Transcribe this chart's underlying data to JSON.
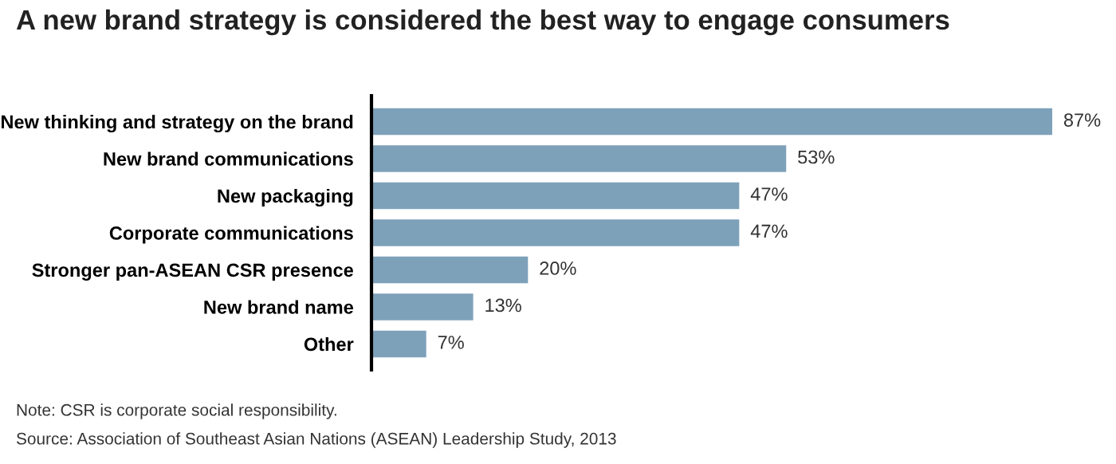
{
  "chart_data": {
    "type": "bar",
    "orientation": "horizontal",
    "title": "A new brand strategy is considered the best way to engage consumers",
    "categories": [
      "New thinking and strategy on the brand",
      "New brand communications",
      "New packaging",
      "Corporate communications",
      "Stronger pan-ASEAN CSR presence",
      "New brand name",
      "Other"
    ],
    "values": [
      87,
      53,
      47,
      47,
      20,
      13,
      7
    ],
    "value_labels": [
      "87%",
      "53%",
      "47%",
      "47%",
      "20%",
      "13%",
      "7%"
    ],
    "color": "#7ea1ba",
    "annotations": [
      "Note: CSR is corporate social responsibility.",
      "Source: Association of Southeast Asian Nations (ASEAN) Leadership Study, 2013"
    ]
  }
}
